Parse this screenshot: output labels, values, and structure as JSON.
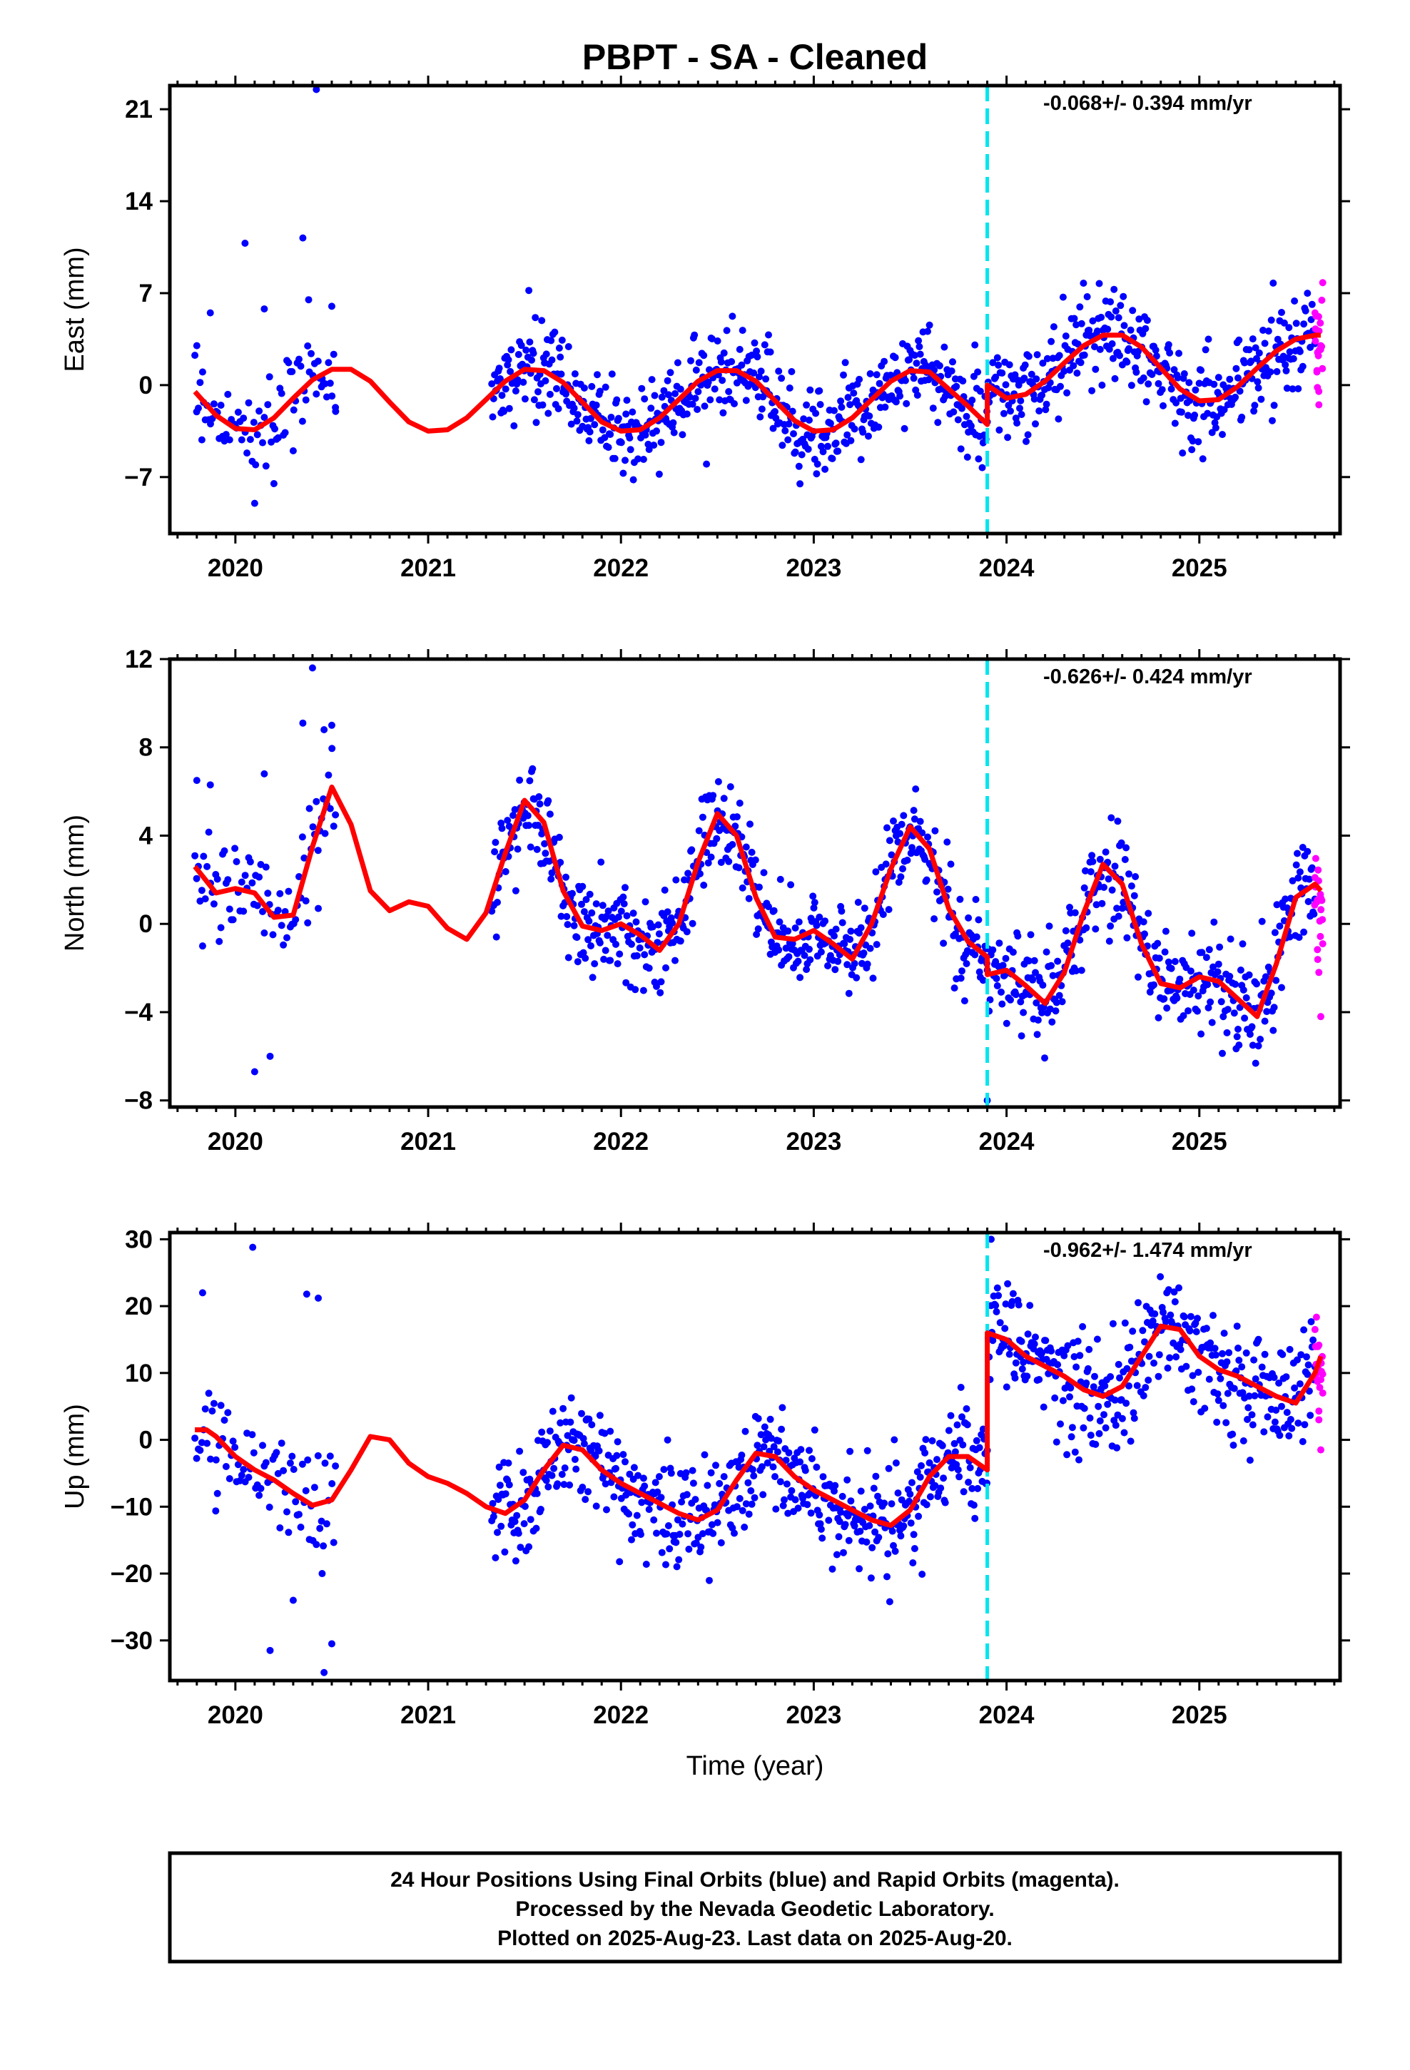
{
  "title": "PBPT  - SA - Cleaned",
  "xlabel": "Time (year)",
  "footer": [
    "24 Hour Positions Using Final Orbits (blue) and Rapid Orbits (magenta).",
    "Processed by the Nevada Geodetic Laboratory.",
    "Plotted on 2025-Aug-23. Last data on 2025-Aug-20."
  ],
  "colors": {
    "final_orbits": "#0000ff",
    "rapid_orbits": "#ff00ff",
    "model": "#ff0000",
    "equipment_change": "#00e5ee",
    "frame": "#000000"
  },
  "chart_data": [
    {
      "type": "scatter",
      "panel": "east",
      "ylabel": "East (mm)",
      "rate": "-0.068+/- 0.394 mm/yr",
      "xlim": [
        2019.66,
        2025.73
      ],
      "ylim": [
        -11.3,
        22.8
      ],
      "xticks": [
        2020,
        2021,
        2022,
        2023,
        2024,
        2025
      ],
      "xticklabels": [
        "2020",
        "2021",
        "2022",
        "2023",
        "2024",
        "2025"
      ],
      "yticks": [
        -7,
        0,
        7,
        14,
        21
      ],
      "yticklabels": [
        "−7",
        "0",
        "7",
        "14",
        "21"
      ],
      "offset_epoch": 2023.9,
      "data_spans": [
        [
          2019.79,
          2020.52
        ],
        [
          2021.33,
          2023.9
        ],
        [
          2023.9,
          2025.6
        ]
      ],
      "rapid_span": [
        2025.6,
        2025.64
      ],
      "series": [
        {
          "name": "Model",
          "role": "model",
          "x": [
            2019.79,
            2019.9,
            2020.0,
            2020.1,
            2020.2,
            2020.3,
            2020.4,
            2020.5,
            2020.6,
            2020.7,
            2020.8,
            2020.9,
            2021.0,
            2021.1,
            2021.2,
            2021.3,
            2021.4,
            2021.5,
            2021.6,
            2021.7,
            2021.8,
            2021.9,
            2022.0,
            2022.1,
            2022.2,
            2022.3,
            2022.4,
            2022.5,
            2022.6,
            2022.7,
            2022.8,
            2022.9,
            2023.0,
            2023.1,
            2023.2,
            2023.3,
            2023.4,
            2023.5,
            2023.6,
            2023.7,
            2023.8,
            2023.9,
            2023.9,
            2024.0,
            2024.1,
            2024.2,
            2024.3,
            2024.4,
            2024.5,
            2024.6,
            2024.7,
            2024.8,
            2024.9,
            2025.0,
            2025.1,
            2025.2,
            2025.3,
            2025.4,
            2025.5,
            2025.6,
            2025.63
          ],
          "y": [
            -0.5,
            -2.3,
            -3.3,
            -3.4,
            -2.5,
            -1.0,
            0.4,
            1.2,
            1.2,
            0.3,
            -1.3,
            -2.8,
            -3.5,
            -3.4,
            -2.5,
            -1.1,
            0.3,
            1.2,
            1.1,
            0.2,
            -1.3,
            -2.8,
            -3.5,
            -3.4,
            -2.5,
            -1.1,
            0.3,
            1.1,
            1.1,
            0.3,
            -1.2,
            -2.7,
            -3.5,
            -3.4,
            -2.5,
            -1.1,
            0.3,
            1.1,
            1.0,
            -0.3,
            -1.6,
            -3.0,
            0.0,
            -1.0,
            -0.7,
            0.3,
            1.7,
            3.0,
            3.8,
            3.8,
            2.9,
            1.3,
            -0.3,
            -1.2,
            -1.1,
            -0.1,
            1.3,
            2.6,
            3.5,
            3.8,
            3.8
          ]
        },
        {
          "name": "Final Orbits",
          "role": "final",
          "x": [
            2019.8,
            2019.83,
            2019.87,
            2019.9,
            2020.05,
            2020.1,
            2020.15,
            2020.2,
            2020.3,
            2020.35,
            2020.38,
            2020.42,
            2020.45,
            2020.5,
            2020.52
          ],
          "y": [
            3.0,
            1.0,
            5.5,
            -2.0,
            10.8,
            -9.0,
            5.8,
            -7.5,
            -5.0,
            11.2,
            6.5,
            22.5,
            0.5,
            6.0,
            -2.0
          ]
        },
        {
          "name": "Rapid Orbits",
          "role": "rapid",
          "x": [
            2025.6,
            2025.61,
            2025.62,
            2025.63,
            2025.64
          ],
          "y": [
            5.5,
            1.0,
            -1.5,
            3.0,
            7.8
          ]
        }
      ]
    },
    {
      "type": "scatter",
      "panel": "north",
      "ylabel": "North (mm)",
      "rate": "-0.626+/- 0.424 mm/yr",
      "xlim": [
        2019.66,
        2025.73
      ],
      "ylim": [
        -8.3,
        12.0
      ],
      "xticks": [
        2020,
        2021,
        2022,
        2023,
        2024,
        2025
      ],
      "xticklabels": [
        "2020",
        "2021",
        "2022",
        "2023",
        "2024",
        "2025"
      ],
      "yticks": [
        -8,
        -4,
        0,
        4,
        8,
        12
      ],
      "yticklabels": [
        "−8",
        "−4",
        "0",
        "4",
        "8",
        "12"
      ],
      "offset_epoch": 2023.9,
      "data_spans": [
        [
          2019.79,
          2020.52
        ],
        [
          2021.33,
          2023.9
        ],
        [
          2023.9,
          2025.6
        ]
      ],
      "rapid_span": [
        2025.6,
        2025.64
      ],
      "series": [
        {
          "name": "Model",
          "role": "model",
          "x": [
            2019.79,
            2019.9,
            2020.0,
            2020.1,
            2020.2,
            2020.3,
            2020.4,
            2020.5,
            2020.6,
            2020.7,
            2020.8,
            2020.9,
            2021.0,
            2021.1,
            2021.2,
            2021.3,
            2021.4,
            2021.5,
            2021.6,
            2021.7,
            2021.8,
            2021.9,
            2022.0,
            2022.1,
            2022.2,
            2022.3,
            2022.4,
            2022.5,
            2022.6,
            2022.7,
            2022.8,
            2022.9,
            2023.0,
            2023.1,
            2023.2,
            2023.3,
            2023.4,
            2023.5,
            2023.6,
            2023.7,
            2023.8,
            2023.9,
            2023.9,
            2024.0,
            2024.1,
            2024.2,
            2024.3,
            2024.4,
            2024.5,
            2024.6,
            2024.7,
            2024.8,
            2024.9,
            2025.0,
            2025.1,
            2025.2,
            2025.3,
            2025.4,
            2025.5,
            2025.6,
            2025.63
          ],
          "y": [
            2.6,
            1.4,
            1.6,
            1.4,
            0.3,
            0.4,
            3.5,
            6.2,
            4.5,
            1.5,
            0.6,
            1.0,
            0.8,
            -0.2,
            -0.7,
            0.5,
            3.2,
            5.6,
            4.6,
            1.5,
            -0.1,
            -0.3,
            0.0,
            -0.5,
            -1.2,
            0.0,
            2.8,
            5.0,
            4.0,
            1.2,
            -0.6,
            -0.7,
            -0.3,
            -0.9,
            -1.6,
            0.0,
            2.5,
            4.4,
            3.4,
            0.7,
            -0.8,
            -1.5,
            -2.3,
            -2.1,
            -2.8,
            -3.6,
            -2.2,
            0.5,
            2.7,
            1.8,
            -0.9,
            -2.7,
            -2.9,
            -2.4,
            -2.6,
            -3.4,
            -4.2,
            -1.8,
            1.2,
            1.8,
            1.5
          ]
        },
        {
          "name": "Final Orbits",
          "role": "final",
          "x": [
            2019.8,
            2019.83,
            2019.87,
            2020.1,
            2020.15,
            2020.18,
            2020.35,
            2020.4,
            2020.43,
            2020.46,
            2020.5,
            2023.9
          ],
          "y": [
            6.5,
            -1.0,
            6.3,
            -6.7,
            6.8,
            -6.0,
            9.1,
            11.6,
            0.7,
            8.8,
            9.0,
            -8.0
          ]
        },
        {
          "name": "Rapid Orbits",
          "role": "rapid",
          "x": [
            2025.6,
            2025.61,
            2025.62,
            2025.63,
            2025.64
          ],
          "y": [
            2.1,
            1.0,
            -2.2,
            -4.2,
            -0.9
          ]
        }
      ]
    },
    {
      "type": "scatter",
      "panel": "up",
      "ylabel": "Up (mm)",
      "rate": "-0.962+/- 1.474 mm/yr",
      "xlim": [
        2019.66,
        2025.73
      ],
      "ylim": [
        -36.0,
        31.0
      ],
      "xticks": [
        2020,
        2021,
        2022,
        2023,
        2024,
        2025
      ],
      "xticklabels": [
        "2020",
        "2021",
        "2022",
        "2023",
        "2024",
        "2025"
      ],
      "yticks": [
        -30,
        -20,
        -10,
        0,
        10,
        20,
        30
      ],
      "yticklabels": [
        "−30",
        "−20",
        "−10",
        "0",
        "10",
        "20",
        "30"
      ],
      "offset_epoch": 2023.9,
      "data_spans": [
        [
          2019.79,
          2020.52
        ],
        [
          2021.33,
          2023.9
        ],
        [
          2023.9,
          2025.6
        ]
      ],
      "rapid_span": [
        2025.6,
        2025.64
      ],
      "series": [
        {
          "name": "Model",
          "role": "model",
          "x": [
            2019.79,
            2019.85,
            2019.9,
            2020.0,
            2020.1,
            2020.2,
            2020.3,
            2020.4,
            2020.5,
            2020.6,
            2020.7,
            2020.8,
            2020.9,
            2021.0,
            2021.1,
            2021.2,
            2021.3,
            2021.4,
            2021.5,
            2021.6,
            2021.7,
            2021.8,
            2021.9,
            2022.0,
            2022.1,
            2022.2,
            2022.3,
            2022.4,
            2022.5,
            2022.6,
            2022.7,
            2022.8,
            2022.9,
            2023.0,
            2023.1,
            2023.2,
            2023.3,
            2023.4,
            2023.5,
            2023.6,
            2023.7,
            2023.8,
            2023.9,
            2023.9,
            2024.0,
            2024.1,
            2024.2,
            2024.3,
            2024.4,
            2024.5,
            2024.6,
            2024.7,
            2024.8,
            2024.9,
            2025.0,
            2025.1,
            2025.2,
            2025.3,
            2025.4,
            2025.5,
            2025.6,
            2025.63
          ],
          "y": [
            1.5,
            1.5,
            0.5,
            -2.5,
            -4.5,
            -6.0,
            -8.0,
            -9.8,
            -9.0,
            -4.5,
            0.5,
            0.0,
            -3.5,
            -5.5,
            -6.5,
            -8.0,
            -10.0,
            -11.0,
            -9.0,
            -4.5,
            -0.8,
            -1.5,
            -4.5,
            -6.5,
            -8.0,
            -9.5,
            -11.0,
            -12.0,
            -10.5,
            -6.0,
            -2.0,
            -2.5,
            -5.5,
            -7.5,
            -9.0,
            -10.5,
            -12.0,
            -12.8,
            -10.5,
            -5.5,
            -2.5,
            -2.5,
            -4.5,
            16.0,
            15.0,
            12.5,
            11.0,
            9.5,
            7.5,
            6.5,
            8.0,
            12.5,
            17.0,
            16.5,
            12.5,
            10.5,
            9.5,
            8.0,
            6.5,
            5.5,
            10.0,
            12.5
          ]
        },
        {
          "name": "Final Orbits",
          "role": "final",
          "x": [
            2019.83,
            2019.9,
            2020.09,
            2020.18,
            2020.3,
            2020.37,
            2020.43,
            2020.45,
            2020.46,
            2020.5,
            2023.92
          ],
          "y": [
            22.0,
            -3.0,
            28.8,
            -31.5,
            -24.0,
            21.8,
            21.2,
            -20.0,
            -34.8,
            -30.5,
            30.0
          ]
        },
        {
          "name": "Rapid Orbits",
          "role": "rapid",
          "x": [
            2025.6,
            2025.61,
            2025.62,
            2025.63,
            2025.64
          ],
          "y": [
            16.5,
            10.0,
            3.0,
            -1.5,
            7.0
          ]
        }
      ]
    }
  ]
}
